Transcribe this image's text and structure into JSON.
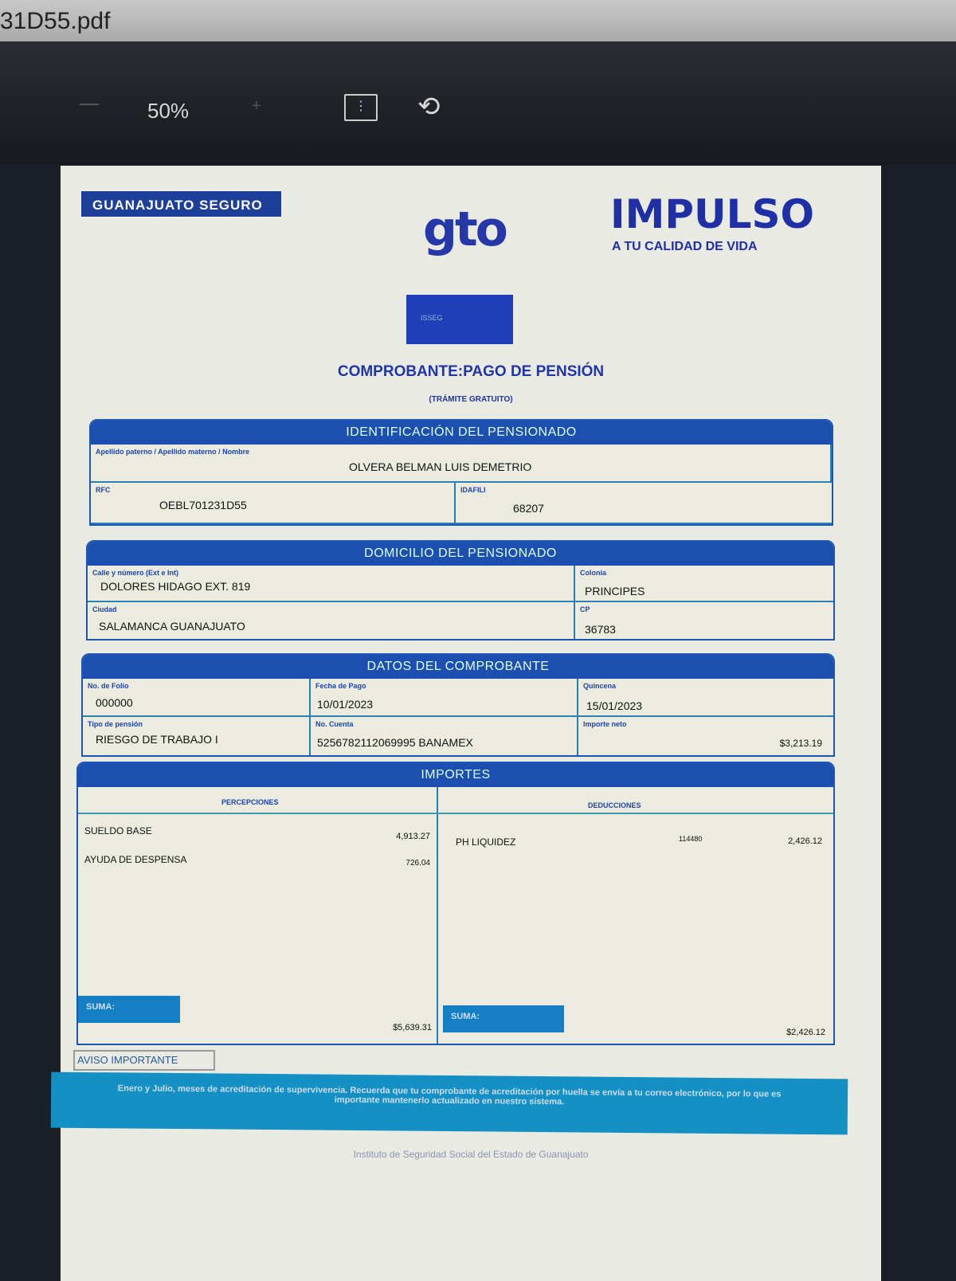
{
  "window": {
    "filename": "31D55.pdf"
  },
  "toolbar": {
    "zoom": "50%",
    "icons": [
      "zoom-out-icon",
      "zoom-in-icon",
      "fit-page-icon",
      "rotate-icon"
    ]
  },
  "header": {
    "badge": "GUANAJUATO SEGURO",
    "logo_gto": "gto",
    "impulso": "IMPULSO",
    "impulso_tagline": "A TU CALIDAD DE VIDA",
    "isseg": "ISSEG"
  },
  "doc": {
    "title": "COMPROBANTE:PAGO DE PENSIÓN",
    "subtitle": "(TRÁMITE GRATUITO)"
  },
  "identificacion": {
    "heading": "IDENTIFICACIÓN DEL PENSIONADO",
    "name_label": "Apellido paterno / Apellido materno / Nombre",
    "name": "OLVERA BELMAN LUIS DEMETRIO",
    "rfc_label": "RFC",
    "rfc": "OEBL701231D55",
    "idafil_label": "IDAFILI",
    "idafil": "68207"
  },
  "domicilio": {
    "heading": "DOMICILIO DEL PENSIONADO",
    "calle_label": "Calle y número (Ext e Int)",
    "calle": "DOLORES HIDAGO EXT. 819",
    "colonia_label": "Colonia",
    "colonia": "PRINCIPES",
    "ciudad_label": "Ciudad",
    "ciudad": "SALAMANCA GUANAJUATO",
    "cp_label": "CP",
    "cp": "36783"
  },
  "datos": {
    "heading": "DATOS DEL COMPROBANTE",
    "folio_label": "No. de Folio",
    "folio": "000000",
    "fecha_label": "Fecha de Pago",
    "fecha": "10/01/2023",
    "quincena_label": "Quincena",
    "quincena": "15/01/2023",
    "tipo_label": "Tipo de pensión",
    "tipo": "RIESGO DE TRABAJO I",
    "cuenta_label": "No. Cuenta",
    "cuenta": "5256782112069995 BANAMEX",
    "neto_label": "Importe neto",
    "neto": "$3,213.19"
  },
  "importes": {
    "heading": "IMPORTES",
    "percepciones_label": "PERCEPCIONES",
    "deducciones_label": "DEDUCCIONES",
    "percepciones": [
      {
        "concepto": "SUELDO BASE",
        "importe": "4,913.27"
      },
      {
        "concepto": "AYUDA DE DESPENSA",
        "importe": "726.04"
      }
    ],
    "deducciones": [
      {
        "concepto": "PH LIQUIDEZ",
        "ref": "114480",
        "importe": "2,426.12"
      }
    ],
    "suma_label": "SUMA:",
    "suma_percepciones": "$5,639.31",
    "suma_deducciones": "$2,426.12"
  },
  "aviso": {
    "label": "AVISO IMPORTANTE",
    "text": "Enero y Julio, meses de acreditación de supervivencia. Recuerda que tu comprobante de acreditación por huella se envía a tu correo electrónico, por lo que es importante mantenerlo actualizado en nuestro sistema."
  },
  "footer": {
    "institution": "Instituto de Seguridad Social del Estado de Guanajuato"
  }
}
